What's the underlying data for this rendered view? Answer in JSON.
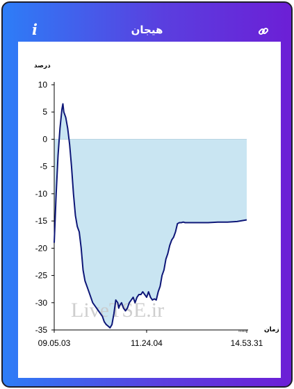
{
  "header": {
    "title": "هیجان",
    "info_label": "i",
    "link_icon": "link-icon"
  },
  "watermark": "LiveTSE.ir",
  "colors": {
    "line": "#0d1677",
    "fill": "#c9e5f2",
    "zero_line": "#b8d4e2"
  },
  "chart_data": {
    "type": "area",
    "title": "",
    "ylabel": "درصد",
    "xlabel": "زمان",
    "ylim": [
      -35,
      10
    ],
    "yticks": [
      10,
      5,
      0,
      -5,
      -10,
      -15,
      -20,
      -25,
      -30,
      -35
    ],
    "xticks": [
      "09.05.03",
      "11.24.04",
      "14.53.31"
    ],
    "x_index_range": [
      0,
      100
    ],
    "xtick_positions": [
      0,
      48,
      100
    ],
    "fill_baseline": 0,
    "grid": false,
    "series": [
      {
        "x": [
          0,
          1,
          2,
          3,
          4,
          4.5,
          5,
          6,
          6.5,
          7,
          8,
          9,
          10,
          11,
          12,
          13,
          14,
          15,
          16,
          17,
          18,
          20,
          22,
          24,
          25,
          26,
          27,
          28,
          29,
          30,
          31,
          32,
          33,
          33.5,
          34,
          35,
          36,
          37,
          38,
          39,
          40,
          41,
          42,
          43,
          44,
          45,
          46,
          47,
          48,
          49,
          50,
          51,
          52,
          53,
          54,
          55,
          56,
          57,
          58,
          59,
          60,
          61,
          62,
          63,
          64,
          65,
          66,
          67,
          68,
          70,
          75,
          80,
          85,
          90,
          95,
          100
        ],
        "values": [
          -19,
          -10,
          -3,
          2,
          5.5,
          6.5,
          5,
          4,
          3,
          2,
          -1,
          -5,
          -10,
          -14,
          -16,
          -17,
          -20,
          -24,
          -26,
          -27,
          -28,
          -30,
          -31,
          -32,
          -32.5,
          -33.5,
          -34,
          -34.3,
          -34.6,
          -34,
          -32,
          -29.5,
          -30,
          -31,
          -30.5,
          -30,
          -31,
          -31.5,
          -31,
          -30,
          -29.5,
          -29,
          -30,
          -29,
          -28.5,
          -28.5,
          -28,
          -28.5,
          -29,
          -28,
          -29,
          -29.5,
          -29.3,
          -29.5,
          -28,
          -27,
          -25,
          -24,
          -22,
          -21,
          -19.5,
          -18.5,
          -18,
          -17,
          -15.5,
          -15.3,
          -15.3,
          -15.2,
          -15.3,
          -15.3,
          -15.3,
          -15.3,
          -15.2,
          -15.2,
          -15.1,
          -14.8
        ]
      }
    ]
  }
}
